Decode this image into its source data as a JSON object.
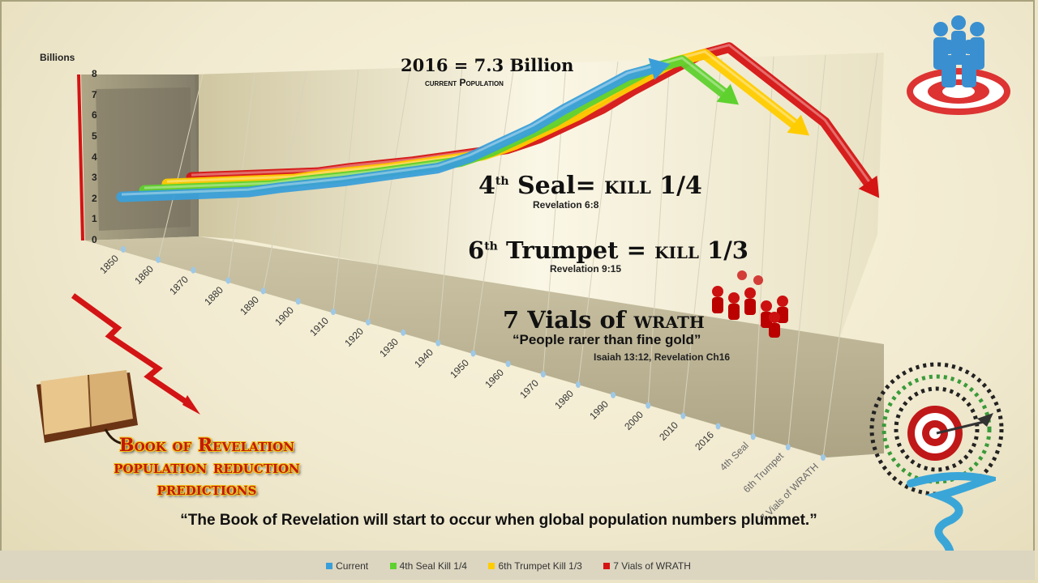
{
  "chart_data": {
    "type": "line",
    "ylabel": "Billions",
    "ylim": [
      0,
      8
    ],
    "yticks": [
      "0",
      "1",
      "2",
      "3",
      "4",
      "5",
      "6",
      "7",
      "8"
    ],
    "categories": [
      "1850",
      "1860",
      "1870",
      "1880",
      "1890",
      "1900",
      "1910",
      "1920",
      "1930",
      "1940",
      "1950",
      "1960",
      "1970",
      "1980",
      "1990",
      "2000",
      "2010",
      "2016",
      "4th Seal",
      "6th Trumpet",
      "7 Vials of WRATH"
    ],
    "series": [
      {
        "name": "Current",
        "color": "#3a9fd9",
        "values": [
          1.2,
          1.25,
          1.3,
          1.35,
          1.4,
          1.6,
          1.75,
          1.9,
          2.1,
          2.3,
          2.5,
          3.0,
          3.7,
          4.4,
          5.3,
          6.1,
          6.9,
          7.3,
          null,
          null,
          null
        ]
      },
      {
        "name": "4th Seal Kill 1/4",
        "color": "#5fd12e",
        "values": [
          1.2,
          1.25,
          1.3,
          1.35,
          1.4,
          1.6,
          1.75,
          1.9,
          2.1,
          2.3,
          2.5,
          3.0,
          3.7,
          4.4,
          5.3,
          6.1,
          6.9,
          7.3,
          5.5,
          null,
          null
        ]
      },
      {
        "name": "6th Trumpet Kill 1/3",
        "color": "#ffcc00",
        "values": [
          1.2,
          1.25,
          1.3,
          1.35,
          1.4,
          1.6,
          1.75,
          1.9,
          2.1,
          2.3,
          2.5,
          3.0,
          3.7,
          4.4,
          5.3,
          6.1,
          6.9,
          7.3,
          5.5,
          3.7,
          null
        ]
      },
      {
        "name": "7 Vials of WRATH",
        "color": "#d51414",
        "values": [
          1.2,
          1.25,
          1.3,
          1.35,
          1.4,
          1.6,
          1.75,
          1.9,
          2.1,
          2.3,
          2.5,
          3.0,
          3.7,
          4.4,
          5.3,
          6.1,
          6.9,
          7.3,
          5.5,
          3.7,
          0.5
        ]
      }
    ]
  },
  "annotations": {
    "current_value": "2016 = 7.3 Billion",
    "current_sub": "current  Population",
    "seal_title_a": "4",
    "seal_title_sup": "th",
    "seal_title_b": " Seal= ",
    "seal_title_c": "kill 1/4",
    "seal_ref": "Revelation 6:8",
    "trumpet_title_a": "6",
    "trumpet_title_sup": "th",
    "trumpet_title_b": " Trumpet =  ",
    "trumpet_title_c": "kill  1/3",
    "trumpet_ref": "Revelation 9:15",
    "vials_title_a": "7 Vials of ",
    "vials_title_b": "wrath",
    "vials_quote": "“People rarer than fine gold”",
    "vials_ref": "Isaiah  13:12, Revelation Ch16"
  },
  "title_lines": [
    "Book of Revelation",
    "population reduction",
    "predictions"
  ],
  "quote": "“The Book of Revelation will start to occur when global population numbers plummet.”",
  "legend": [
    {
      "label": "Current",
      "color": "#3a9fd9"
    },
    {
      "label": "4th Seal Kill 1/4",
      "color": "#5fd12e"
    },
    {
      "label": "6th Trumpet Kill 1/3",
      "color": "#ffcc00"
    },
    {
      "label": "7 Vials of WRATH",
      "color": "#d51414"
    }
  ],
  "icons": [
    "people-target-icon",
    "bible-icon",
    "lightning-arrow-icon",
    "population-circle-target-icon",
    "tornado-icon"
  ]
}
